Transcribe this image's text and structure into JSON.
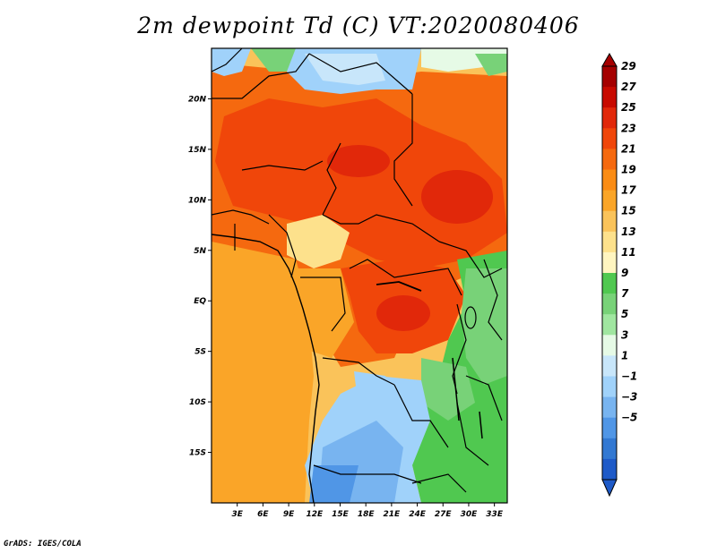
{
  "title": "2m dewpoint Td (C) VT:2020080406",
  "credit": "GrADS: IGES/COLA",
  "map": {
    "projection": "lat-lon",
    "lon_range": [
      0,
      34.5
    ],
    "lat_range": [
      -20,
      25
    ],
    "lat_ticks": [
      {
        "value": 20,
        "label": "20N"
      },
      {
        "value": 15,
        "label": "15N"
      },
      {
        "value": 10,
        "label": "10N"
      },
      {
        "value": 5,
        "label": "5N"
      },
      {
        "value": 0,
        "label": "EQ"
      },
      {
        "value": -5,
        "label": "5S"
      },
      {
        "value": -10,
        "label": "10S"
      },
      {
        "value": -15,
        "label": "15S"
      }
    ],
    "lon_ticks": [
      {
        "value": 3,
        "label": "3E"
      },
      {
        "value": 6,
        "label": "6E"
      },
      {
        "value": 9,
        "label": "9E"
      },
      {
        "value": 12,
        "label": "12E"
      },
      {
        "value": 15,
        "label": "15E"
      },
      {
        "value": 18,
        "label": "18E"
      },
      {
        "value": 21,
        "label": "21E"
      },
      {
        "value": 24,
        "label": "24E"
      },
      {
        "value": 27,
        "label": "27E"
      },
      {
        "value": 30,
        "label": "30E"
      },
      {
        "value": 33,
        "label": "33E"
      }
    ]
  },
  "colorbar": {
    "labels": [
      "29",
      "27",
      "25",
      "23",
      "21",
      "19",
      "17",
      "15",
      "13",
      "11",
      "9",
      "7",
      "5",
      "3",
      "1",
      "−1",
      "−3",
      "−5"
    ],
    "colors": [
      "#a50000",
      "#c80a00",
      "#e1280a",
      "#f0460a",
      "#f5690f",
      "#fa8c14",
      "#faa528",
      "#fac35a",
      "#fde18c",
      "#fff5c0",
      "#50c850",
      "#78d278",
      "#a0e6a0",
      "#e6fae6",
      "#c8e6fa",
      "#a0d2fa",
      "#78b4f0",
      "#5096e6",
      "#3278d2",
      "#1e5ac8"
    ],
    "top_color": "#a50000",
    "bottom_color": "#1e5ac8"
  }
}
